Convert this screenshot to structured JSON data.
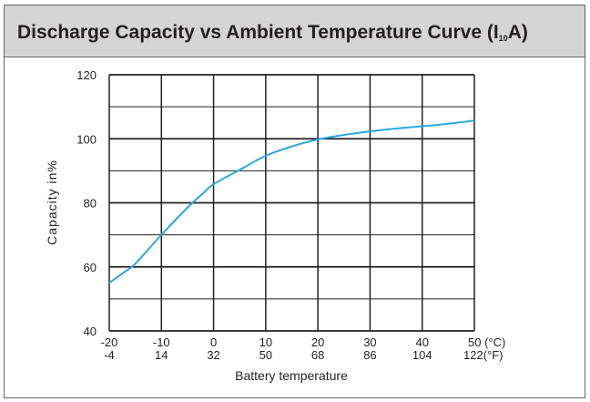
{
  "header": {
    "title_main": "Discharge Capacity vs Ambient Temperature Curve (I",
    "title_sub": "10",
    "title_end": "A)"
  },
  "colors": {
    "curve": "#29a9e0",
    "grid": "#231f20",
    "header_bg": "#d4d4d4"
  },
  "chart_data": {
    "type": "line",
    "title": "Discharge Capacity vs Ambient Temperature Curve (I10A)",
    "xlabel": "Battery temperature",
    "ylabel": "Capacity in%",
    "xlim": [
      -20,
      50
    ],
    "ylim": [
      40,
      120
    ],
    "x_ticks_c": [
      "-20",
      "-10",
      "0",
      "10",
      "20",
      "30",
      "40",
      "50 (°C)"
    ],
    "x_ticks_f": [
      "-4",
      "14",
      "32",
      "50",
      "68",
      "86",
      "104",
      "122(°F)"
    ],
    "y_ticks": [
      "120",
      "100",
      "80",
      "60",
      "40"
    ],
    "grid": true,
    "series": [
      {
        "x": [
          -20,
          -17,
          -15,
          -10,
          -5,
          -2,
          0,
          5,
          10,
          15,
          20,
          25,
          30,
          35,
          40,
          45,
          50
        ],
        "values": [
          55,
          58.5,
          61,
          70,
          78.5,
          83,
          85.8,
          90.3,
          94.7,
          97.6,
          99.8,
          101.2,
          102.3,
          103.2,
          103.9,
          104.7,
          105.7
        ]
      }
    ]
  }
}
